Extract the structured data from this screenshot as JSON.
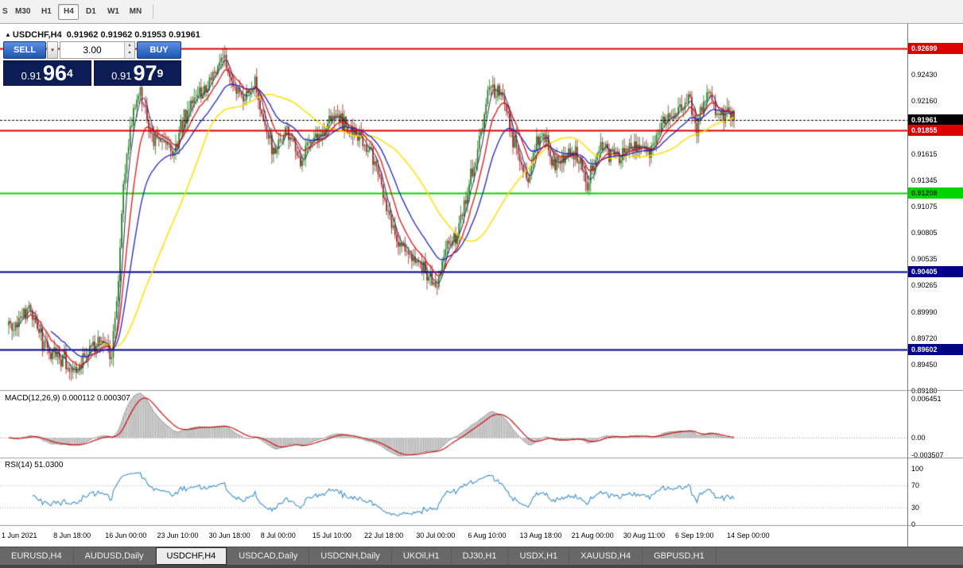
{
  "toolbar": {
    "partial_label": "S",
    "timeframes": [
      "M30",
      "H1",
      "H4",
      "D1",
      "W1",
      "MN"
    ],
    "active_timeframe": "H4"
  },
  "chart": {
    "title": "USDCHF,H4",
    "ohlc": "0.91962 0.91962 0.91953 0.91961"
  },
  "trade_panel": {
    "sell_label": "SELL",
    "buy_label": "BUY",
    "volume": "3.00",
    "bid": {
      "prefix": "0.91",
      "big": "96",
      "sup": "4"
    },
    "ask": {
      "prefix": "0.91",
      "big": "97",
      "sup": "9"
    }
  },
  "price_axis": {
    "ticks": [
      "0.92430",
      "0.92160",
      "0.91615",
      "0.91345",
      "0.91075",
      "0.90805",
      "0.90535",
      "0.90265",
      "0.89990",
      "0.89720",
      "0.89450",
      "0.89180"
    ],
    "markers": [
      {
        "label": "0.92699",
        "bg": "#dd0000",
        "fg": "#ffffff"
      },
      {
        "label": "0.91961",
        "bg": "#000000",
        "fg": "#ffffff"
      },
      {
        "label": "0.91855",
        "bg": "#dd0000",
        "fg": "#ffffff"
      },
      {
        "label": "0.91208",
        "bg": "#00d400",
        "fg": "#003300"
      },
      {
        "label": "0.90405",
        "bg": "#000088",
        "fg": "#ffffff"
      },
      {
        "label": "0.89602",
        "bg": "#000088",
        "fg": "#ffffff"
      }
    ]
  },
  "macd_panel": {
    "label": "MACD(12,26,9) 0.000112 0.000307",
    "axis_top": "0.006451",
    "axis_zero": "0.00",
    "axis_bottom": "-0.003507"
  },
  "rsi_panel": {
    "label": "RSI(14) 51.0300",
    "axis": [
      {
        "v": 100,
        "label": "100"
      },
      {
        "v": 70,
        "label": "70"
      },
      {
        "v": 30,
        "label": "30"
      },
      {
        "v": 0,
        "label": "0"
      }
    ]
  },
  "time_axis": [
    "1 Jun 2021",
    "8 Jun 18:00",
    "16 Jun 00:00",
    "23 Jun 10:00",
    "30 Jun 18:00",
    "8 Jul 00:00",
    "15 Jul 10:00",
    "22 Jul 18:00",
    "30 Jul 00:00",
    "6 Aug 10:00",
    "13 Aug 18:00",
    "21 Aug 00:00",
    "30 Aug 11:00",
    "6 Sep 19:00",
    "14 Sep 00:00"
  ],
  "tabs": [
    "EURUSD,H4",
    "AUDUSD,Daily",
    "USDCHF,H4",
    "USDCAD,Daily",
    "USDCNH,Daily",
    "UKOil,H1",
    "DJ30,H1",
    "USDX,H1",
    "XAUUSD,H4",
    "GBPUSD,H1"
  ],
  "active_tab": "USDCHF,H4",
  "chart_data": {
    "type": "candlestick",
    "symbol": "USDCHF",
    "timeframe": "H4",
    "price_top": 0.92935,
    "price_bottom": 0.89186,
    "last_close": 0.91961,
    "candle_count": 431,
    "up_color": "#1d7a1d",
    "down_color": "#9a1c1c",
    "horizontal_lines": [
      {
        "price": 0.92699,
        "color": "#dd0000",
        "width": 2
      },
      {
        "price": 0.91855,
        "color": "#dd0000",
        "width": 2
      },
      {
        "price": 0.91208,
        "color": "#00d400",
        "width": 2
      },
      {
        "price": 0.90405,
        "color": "#000088",
        "width": 2
      },
      {
        "price": 0.89602,
        "color": "#000088",
        "width": 2
      }
    ],
    "current_price_line": {
      "price": 0.91961,
      "color": "#000000"
    },
    "moving_averages": [
      {
        "period": 55,
        "type": "sma",
        "color": "#ffdf00",
        "width": 1.5
      },
      {
        "period": 26,
        "type": "ema",
        "color": "#2323cc",
        "width": 1.3
      },
      {
        "period": 12,
        "type": "ema",
        "color": "#e51212",
        "width": 1.3
      },
      {
        "period": 5,
        "type": "sma",
        "color": "#29295e",
        "width": 1
      }
    ],
    "macd": {
      "fast": 12,
      "slow": 26,
      "signal": 9,
      "histogram_color": "#adadad",
      "line_color": "#9a9a9a",
      "signal_color": "#cc1111"
    },
    "rsi": {
      "period": 14,
      "color": "#3d8fc9",
      "levels": [
        30,
        70
      ]
    },
    "anchors": [
      [
        0,
        0.8985
      ],
      [
        12,
        0.8998
      ],
      [
        21,
        0.8965
      ],
      [
        31,
        0.895
      ],
      [
        40,
        0.8938
      ],
      [
        47,
        0.896
      ],
      [
        54,
        0.8972
      ],
      [
        61,
        0.8958
      ],
      [
        65,
        0.904
      ],
      [
        68,
        0.913
      ],
      [
        73,
        0.92
      ],
      [
        78,
        0.9228
      ],
      [
        85,
        0.918
      ],
      [
        92,
        0.9175
      ],
      [
        97,
        0.9158
      ],
      [
        104,
        0.92
      ],
      [
        111,
        0.9218
      ],
      [
        118,
        0.923
      ],
      [
        127,
        0.9262
      ],
      [
        134,
        0.9228
      ],
      [
        142,
        0.9222
      ],
      [
        146,
        0.9238
      ],
      [
        153,
        0.918
      ],
      [
        158,
        0.916
      ],
      [
        165,
        0.9185
      ],
      [
        172,
        0.9152
      ],
      [
        179,
        0.918
      ],
      [
        186,
        0.9185
      ],
      [
        196,
        0.92
      ],
      [
        205,
        0.918
      ],
      [
        215,
        0.9165
      ],
      [
        222,
        0.912
      ],
      [
        229,
        0.9075
      ],
      [
        236,
        0.906
      ],
      [
        243,
        0.905
      ],
      [
        250,
        0.9035
      ],
      [
        254,
        0.9022
      ],
      [
        259,
        0.9068
      ],
      [
        266,
        0.908
      ],
      [
        274,
        0.914
      ],
      [
        281,
        0.919
      ],
      [
        285,
        0.9228
      ],
      [
        292,
        0.9222
      ],
      [
        300,
        0.917
      ],
      [
        308,
        0.9128
      ],
      [
        312,
        0.917
      ],
      [
        317,
        0.9185
      ],
      [
        323,
        0.915
      ],
      [
        330,
        0.916
      ],
      [
        336,
        0.9165
      ],
      [
        343,
        0.913
      ],
      [
        351,
        0.917
      ],
      [
        358,
        0.9158
      ],
      [
        366,
        0.9165
      ],
      [
        373,
        0.917
      ],
      [
        380,
        0.9163
      ],
      [
        388,
        0.919
      ],
      [
        395,
        0.9205
      ],
      [
        403,
        0.922
      ],
      [
        408,
        0.9185
      ],
      [
        415,
        0.9232
      ],
      [
        420,
        0.92
      ],
      [
        425,
        0.9205
      ],
      [
        430,
        0.91961
      ]
    ]
  }
}
